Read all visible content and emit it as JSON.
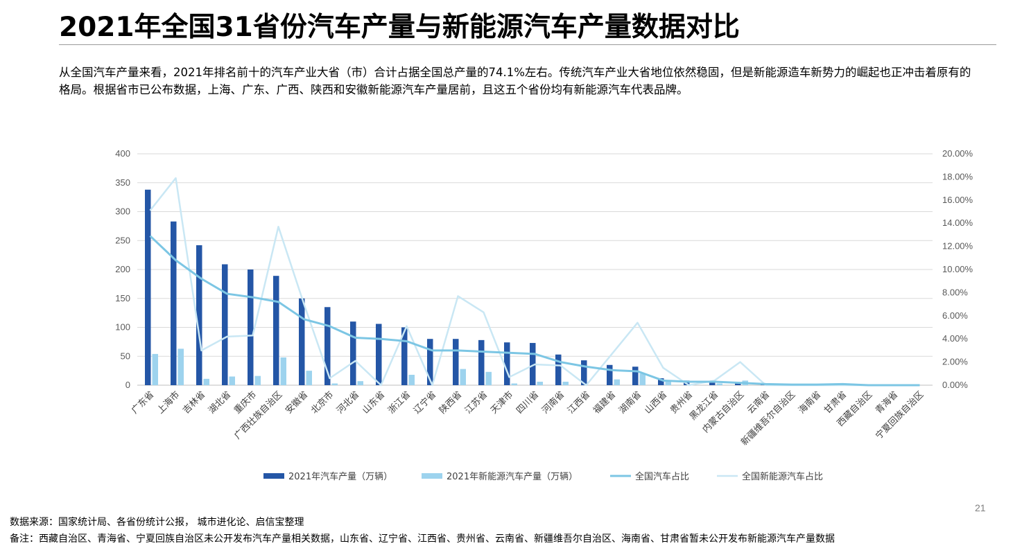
{
  "title": "2021年全国31省份汽车产量与新能源汽车产量数据对比",
  "description": "从全国汽车产量来看，2021年排名前十的汽车产业大省（市）合计占据全国总产量的74.1%左右。传统汽车产业大省地位依然稳固，但是新能源造车新势力的崛起也正冲击着原有的格局。根据省市已公布数据，上海、广东、广西、陕西和安徽新能源汽车产量居前，且这五个省份均有新能源汽车代表品牌。",
  "page_number": "21",
  "source": "数据来源：国家统计局、各省份统计公报， 城市进化论、启信宝整理",
  "note": "备注：西藏自治区、青海省、宁夏回族自治区未公开发布汽车产量相关数据，山东省、辽宁省、江西省、贵州省、云南省、新疆维吾尔自治区、海南省、甘肃省暂未公开发布新能源汽车产量数据",
  "colors": {
    "auto_bar": "#2456A6",
    "nev_bar": "#9DD3EE",
    "auto_share_line": "#7CC6E4",
    "nev_share_line": "#C9E7F4",
    "grid": "#d9d9d9",
    "axis": "#bfbfbf"
  },
  "chart_data": {
    "type": "bar",
    "title": "",
    "categories": [
      "广东省",
      "上海市",
      "吉林省",
      "湖北省",
      "重庆市",
      "广西壮族自治区",
      "安徽省",
      "北京市",
      "河北省",
      "山东省",
      "浙江省",
      "辽宁省",
      "陕西省",
      "江苏省",
      "天津市",
      "四川省",
      "河南省",
      "江西省",
      "福建省",
      "湖南省",
      "山西省",
      "贵州省",
      "黑龙江省",
      "内蒙古自治区",
      "云南省",
      "新疆维吾尔自治区",
      "海南省",
      "甘肃省",
      "西藏自治区",
      "青海省",
      "宁夏回族自治区"
    ],
    "left_axis": {
      "ylim": [
        0,
        400
      ],
      "ticks": [
        "0",
        "50",
        "100",
        "150",
        "200",
        "250",
        "300",
        "350",
        "400"
      ]
    },
    "right_axis": {
      "ylim": [
        0,
        20
      ],
      "ticks": [
        "0.00%",
        "2.00%",
        "4.00%",
        "6.00%",
        "8.00%",
        "10.00%",
        "12.00%",
        "14.00%",
        "16.00%",
        "18.00%",
        "20.00%"
      ]
    },
    "series": [
      {
        "name": "2021年汽车产量（万辆）",
        "kind": "bar",
        "axis": "left",
        "values": [
          338,
          283,
          242,
          209,
          200,
          189,
          150,
          135,
          110,
          106,
          100,
          80,
          80,
          78,
          74,
          73,
          53,
          43,
          35,
          32,
          12,
          8,
          7,
          5,
          2,
          1,
          1,
          2,
          0,
          0,
          0
        ]
      },
      {
        "name": "2021年新能源汽车产量（万辆）",
        "kind": "bar",
        "axis": "left",
        "values": [
          54,
          63,
          11,
          15,
          16,
          48,
          25,
          3,
          7,
          0,
          18,
          0,
          28,
          23,
          3,
          6,
          6,
          0,
          10,
          20,
          7,
          0,
          3,
          8,
          0,
          0,
          0,
          0,
          0,
          0,
          0
        ]
      },
      {
        "name": "全国汽车占比",
        "kind": "line",
        "axis": "right",
        "values": [
          12.9,
          10.8,
          9.2,
          7.9,
          7.6,
          7.2,
          5.7,
          5.1,
          4.1,
          4.0,
          3.8,
          3.0,
          3.0,
          2.9,
          2.8,
          2.7,
          2.0,
          1.6,
          1.3,
          1.2,
          0.4,
          0.3,
          0.3,
          0.2,
          0.1,
          0.05,
          0.05,
          0.1,
          0,
          0,
          0
        ]
      },
      {
        "name": "全国新能源汽车占比",
        "kind": "line",
        "axis": "right",
        "values": [
          15.1,
          17.9,
          3.0,
          4.2,
          4.3,
          13.7,
          7.0,
          0.6,
          2.1,
          0,
          5.1,
          0,
          7.7,
          6.3,
          0.7,
          1.8,
          1.7,
          0,
          2.7,
          5.4,
          1.5,
          0,
          0.4,
          2.0,
          0,
          0,
          0,
          0,
          0,
          0,
          0
        ]
      }
    ],
    "legend_position": "bottom",
    "grid": true
  }
}
